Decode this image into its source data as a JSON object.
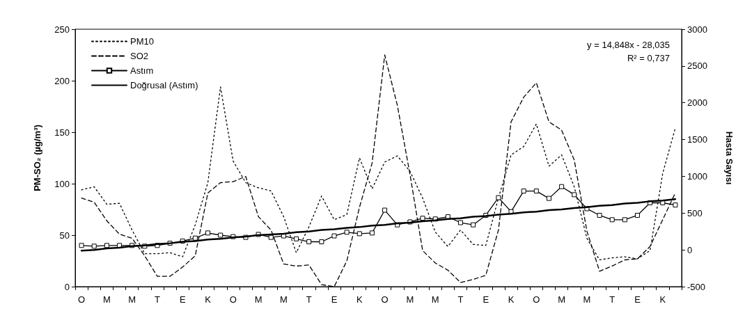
{
  "chart_data": {
    "type": "line",
    "ylabel": "PM-SO₂ (µg/m³)",
    "y2label": "Hasta Sayısı",
    "annotations": [
      "y = 14,848x - 28,035",
      "R² = 0,737"
    ],
    "categories": [
      "O",
      null,
      "M",
      null,
      "M",
      null,
      "T",
      null,
      "E",
      null,
      "K",
      null,
      "O",
      null,
      "M",
      null,
      "M",
      null,
      "T",
      null,
      "E",
      null,
      "K",
      null,
      "O",
      null,
      "M",
      null,
      "M",
      null,
      "T",
      null,
      "E",
      null,
      "K",
      null,
      "O",
      null,
      "M",
      null,
      "M",
      null,
      "T",
      null,
      "E",
      null,
      "K",
      null
    ],
    "ylim": [
      0,
      250
    ],
    "yticks": [
      0,
      50,
      100,
      150,
      200,
      250
    ],
    "y2lim": [
      -500,
      3000
    ],
    "y2ticks": [
      -500,
      0,
      500,
      1000,
      1500,
      2000,
      2500,
      3000
    ],
    "grid": false,
    "legend": "top left",
    "series": [
      {
        "name": "PM10",
        "color": "#000000",
        "line_style": "dotted",
        "marker": "none",
        "values": [
          94,
          97,
          80,
          81,
          55,
          32,
          32,
          33,
          29,
          60,
          101,
          194,
          122,
          101,
          96,
          93,
          68,
          33,
          58,
          88,
          65,
          70,
          125,
          95,
          121,
          127,
          112,
          86,
          53,
          39,
          55,
          41,
          40,
          86,
          128,
          136,
          158,
          117,
          128,
          97,
          47,
          26,
          28,
          29,
          27,
          35,
          110,
          154
        ]
      },
      {
        "name": "SO2",
        "color": "#000000",
        "line_style": "dashed",
        "marker": "none",
        "values": [
          86,
          82,
          64,
          51,
          47,
          30,
          10,
          10,
          19,
          30,
          91,
          101,
          102,
          107,
          68,
          55,
          22,
          20,
          21,
          2,
          0,
          25,
          77,
          120,
          225,
          176,
          109,
          35,
          23,
          16,
          4,
          7,
          11,
          55,
          160,
          184,
          198,
          160,
          152,
          123,
          54,
          15,
          20,
          26,
          27,
          39,
          65,
          91
        ]
      },
      {
        "name": "Astım",
        "color": "#000000",
        "line_style": "solid",
        "marker": "square",
        "axis": "y2",
        "values": [
          60,
          50,
          60,
          60,
          60,
          50,
          60,
          90,
          120,
          160,
          230,
          200,
          180,
          170,
          210,
          170,
          190,
          150,
          110,
          110,
          190,
          240,
          220,
          230,
          540,
          340,
          380,
          430,
          420,
          450,
          370,
          340,
          470,
          710,
          520,
          800,
          800,
          700,
          860,
          750,
          560,
          470,
          410,
          410,
          470,
          640,
          640,
          610
        ]
      },
      {
        "name": "Doğrusal (Astım)",
        "color": "#000000",
        "line_style": "solid",
        "marker": "none",
        "axis": "y2",
        "values": [
          -10,
          0,
          20,
          30,
          50,
          60,
          80,
          90,
          110,
          120,
          140,
          150,
          170,
          180,
          200,
          210,
          220,
          240,
          250,
          270,
          280,
          300,
          310,
          330,
          340,
          360,
          370,
          390,
          400,
          420,
          430,
          450,
          460,
          480,
          490,
          510,
          520,
          540,
          550,
          570,
          580,
          600,
          610,
          630,
          640,
          660,
          670,
          690
        ]
      }
    ]
  }
}
